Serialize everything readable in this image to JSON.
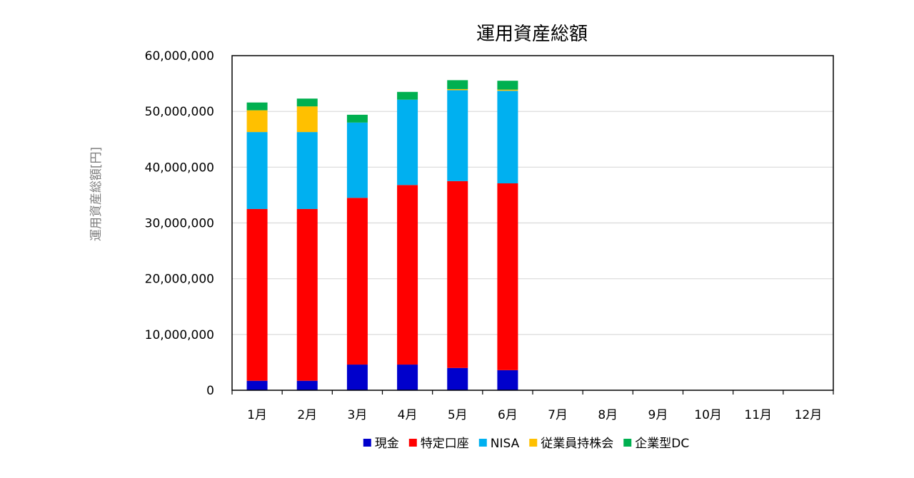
{
  "chart_data": {
    "type": "bar",
    "stacked": true,
    "title": "運用資産総額",
    "xlabel": "",
    "ylabel": "運用資産総額[円]",
    "ylim": [
      0,
      60000000
    ],
    "yticks": [
      0,
      10000000,
      20000000,
      30000000,
      40000000,
      50000000,
      60000000
    ],
    "ytick_labels": [
      "0",
      "10,000,000",
      "20,000,000",
      "30,000,000",
      "40,000,000",
      "50,000,000",
      "60,000,000"
    ],
    "grid": true,
    "legend_position": "bottom",
    "categories": [
      "1月",
      "2月",
      "3月",
      "4月",
      "5月",
      "6月",
      "7月",
      "8月",
      "9月",
      "10月",
      "11月",
      "12月"
    ],
    "series": [
      {
        "name": "現金",
        "color": "#0000cc",
        "values": [
          1700000,
          1700000,
          4600000,
          4600000,
          4000000,
          3600000,
          null,
          null,
          null,
          null,
          null,
          null
        ]
      },
      {
        "name": "特定口座",
        "color": "#ff0000",
        "values": [
          30800000,
          30800000,
          29900000,
          32200000,
          33500000,
          33500000,
          null,
          null,
          null,
          null,
          null,
          null
        ]
      },
      {
        "name": "NISA",
        "color": "#00b0f0",
        "values": [
          13800000,
          13800000,
          13500000,
          15300000,
          16300000,
          16600000,
          null,
          null,
          null,
          null,
          null,
          null
        ]
      },
      {
        "name": "従業員持株会",
        "color": "#ffc000",
        "values": [
          3900000,
          4600000,
          0,
          0,
          200000,
          200000,
          null,
          null,
          null,
          null,
          null,
          null
        ]
      },
      {
        "name": "企業型DC",
        "color": "#00b050",
        "values": [
          1400000,
          1400000,
          1400000,
          1400000,
          1600000,
          1600000,
          null,
          null,
          null,
          null,
          null,
          null
        ]
      }
    ]
  }
}
